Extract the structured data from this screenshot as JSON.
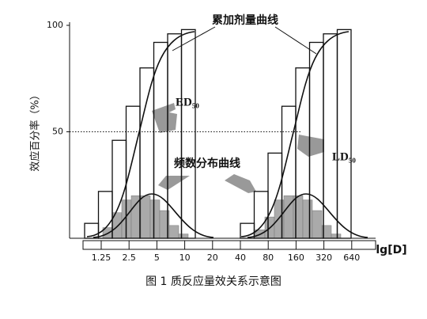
{
  "chart_data": {
    "type": "dose-response",
    "y_label": "效应百分率（%）",
    "ylim": [
      0,
      100
    ],
    "yticks": [
      50,
      100
    ],
    "x_label": "lg[D]",
    "categories": [
      "1.25",
      "2.5",
      "5",
      "10",
      "20",
      "40",
      "80",
      "160",
      "320",
      "640"
    ],
    "groups": [
      {
        "cumulative": [
          7,
          22,
          46,
          62,
          80,
          92,
          96,
          98
        ],
        "frequency": [
          5,
          12,
          18,
          20,
          20,
          18,
          13,
          6,
          2
        ]
      },
      {
        "cumulative": [
          7,
          22,
          40,
          62,
          80,
          92,
          96,
          98
        ],
        "frequency": [
          4,
          10,
          18,
          20,
          20,
          18,
          13,
          6,
          2
        ]
      }
    ],
    "reference_line": 50,
    "annotations": [
      "累加剂量曲线",
      "ED₅₀",
      "频数分布曲线",
      "LD₅₀"
    ],
    "caption": "图 1   质反应量效关系示意图"
  }
}
